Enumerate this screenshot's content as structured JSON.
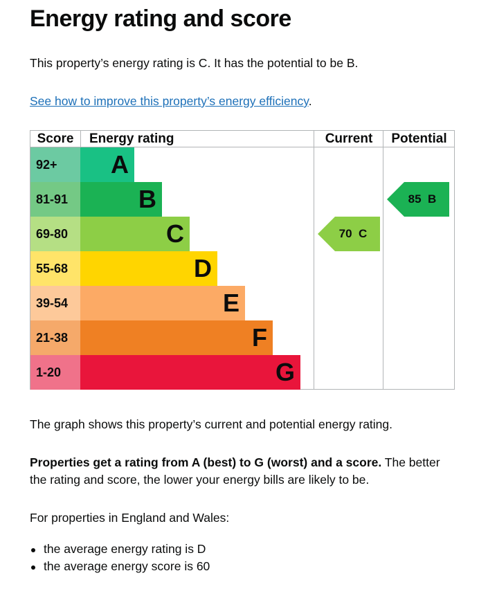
{
  "heading": "Energy rating and score",
  "intro": "This property’s energy rating is C. It has the potential to be B.",
  "link": {
    "text": "See how to improve this property’s energy efficiency",
    "after": "."
  },
  "epc": {
    "headers": [
      "Score",
      "Energy rating",
      "Current",
      "Potential"
    ],
    "bands": [
      {
        "score": "92+",
        "letter": "A"
      },
      {
        "score": "81-91",
        "letter": "B"
      },
      {
        "score": "69-80",
        "letter": "C"
      },
      {
        "score": "55-68",
        "letter": "D"
      },
      {
        "score": "39-54",
        "letter": "E"
      },
      {
        "score": "21-38",
        "letter": "F"
      },
      {
        "score": "1-20",
        "letter": "G"
      }
    ],
    "current": {
      "score": 70,
      "letter": "C"
    },
    "potential": {
      "score": 85,
      "letter": "B"
    }
  },
  "graph_note": "The graph shows this property’s current and potential energy rating.",
  "rating_para": {
    "bold": "Properties get a rating from A (best) to G (worst) and a score.",
    "line1": "The better",
    "line2": "the rating and score, the lower your energy bills are likely to be."
  },
  "average_intro": "For properties in England and Wales:",
  "averages": [
    "the average energy rating is D",
    "the average energy score is 60"
  ]
}
